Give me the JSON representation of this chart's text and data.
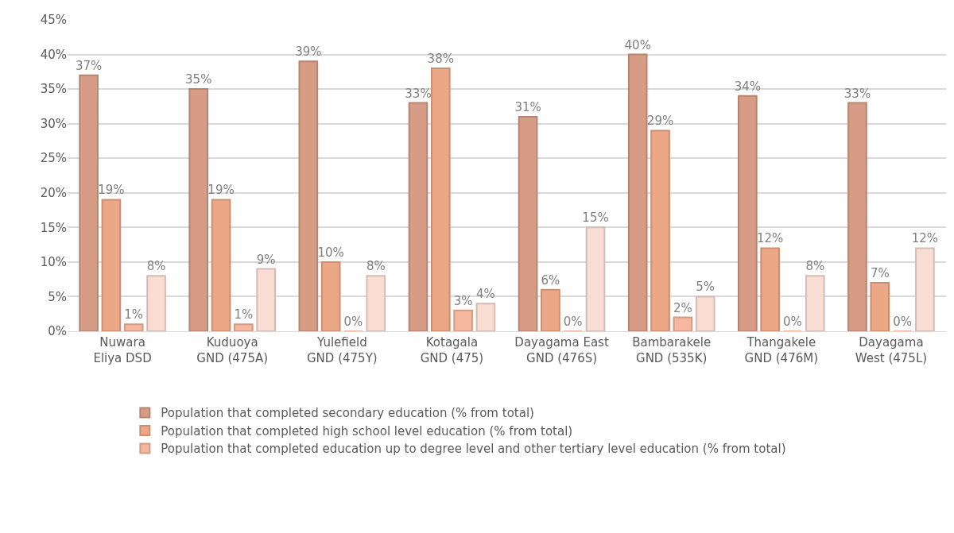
{
  "chart_data": {
    "type": "bar",
    "categories": [
      "Nuwara Eliya DSD",
      "Kuduoya GND (475A)",
      "Yulefield GND (475Y)",
      "Kotagala GND (475)",
      "Dayagama East GND (476S)",
      "Bambarakele GND (535K)",
      "Thangakele GND (476M)",
      "Dayagama West (475L)"
    ],
    "series": [
      {
        "name": "Population that completed secondary education (% from total)",
        "color": "#d69c86",
        "values": [
          37,
          35,
          39,
          33,
          31,
          40,
          34,
          33
        ],
        "value_labels": [
          "37%",
          "35%",
          "39%",
          "33%",
          "31%",
          "40%",
          "34%",
          "33%"
        ]
      },
      {
        "name": "Population that completed high school level education (% from total)",
        "color": "#eca886",
        "values": [
          19,
          19,
          10,
          38,
          6,
          29,
          12,
          7
        ],
        "value_labels": [
          "19%",
          "19%",
          "10%",
          "38%",
          "6%",
          "29%",
          "12%",
          "7%"
        ]
      },
      {
        "name": "Population that completed education up to degree level and other tertiary level education (% from total)",
        "color": "#f5b79e",
        "values": [
          1,
          1,
          0,
          3,
          0,
          2,
          0,
          0
        ],
        "value_labels": [
          "1%",
          "1%",
          "0%",
          "3%",
          "0%",
          "2%",
          "0%",
          "0%"
        ]
      },
      {
        "color": "#f9dcd2",
        "values": [
          8,
          9,
          8,
          4,
          15,
          5,
          8,
          12
        ],
        "value_labels": [
          "8%",
          "9%",
          "8%",
          "4%",
          "15%",
          "5%",
          "8%",
          "12%"
        ]
      }
    ],
    "ylim": [
      0,
      45
    ],
    "yticks": [
      {
        "value": 0,
        "label": "0%"
      },
      {
        "value": 5,
        "label": "5%"
      },
      {
        "value": 10,
        "label": "10%"
      },
      {
        "value": 15,
        "label": "15%"
      },
      {
        "value": 20,
        "label": "20%"
      },
      {
        "value": 25,
        "label": "25%"
      },
      {
        "value": 30,
        "label": "30%"
      },
      {
        "value": 35,
        "label": "35%"
      },
      {
        "value": 40,
        "label": "40%"
      },
      {
        "value": 45,
        "label": "45%"
      }
    ],
    "grid": "y",
    "legend": "bottom"
  }
}
